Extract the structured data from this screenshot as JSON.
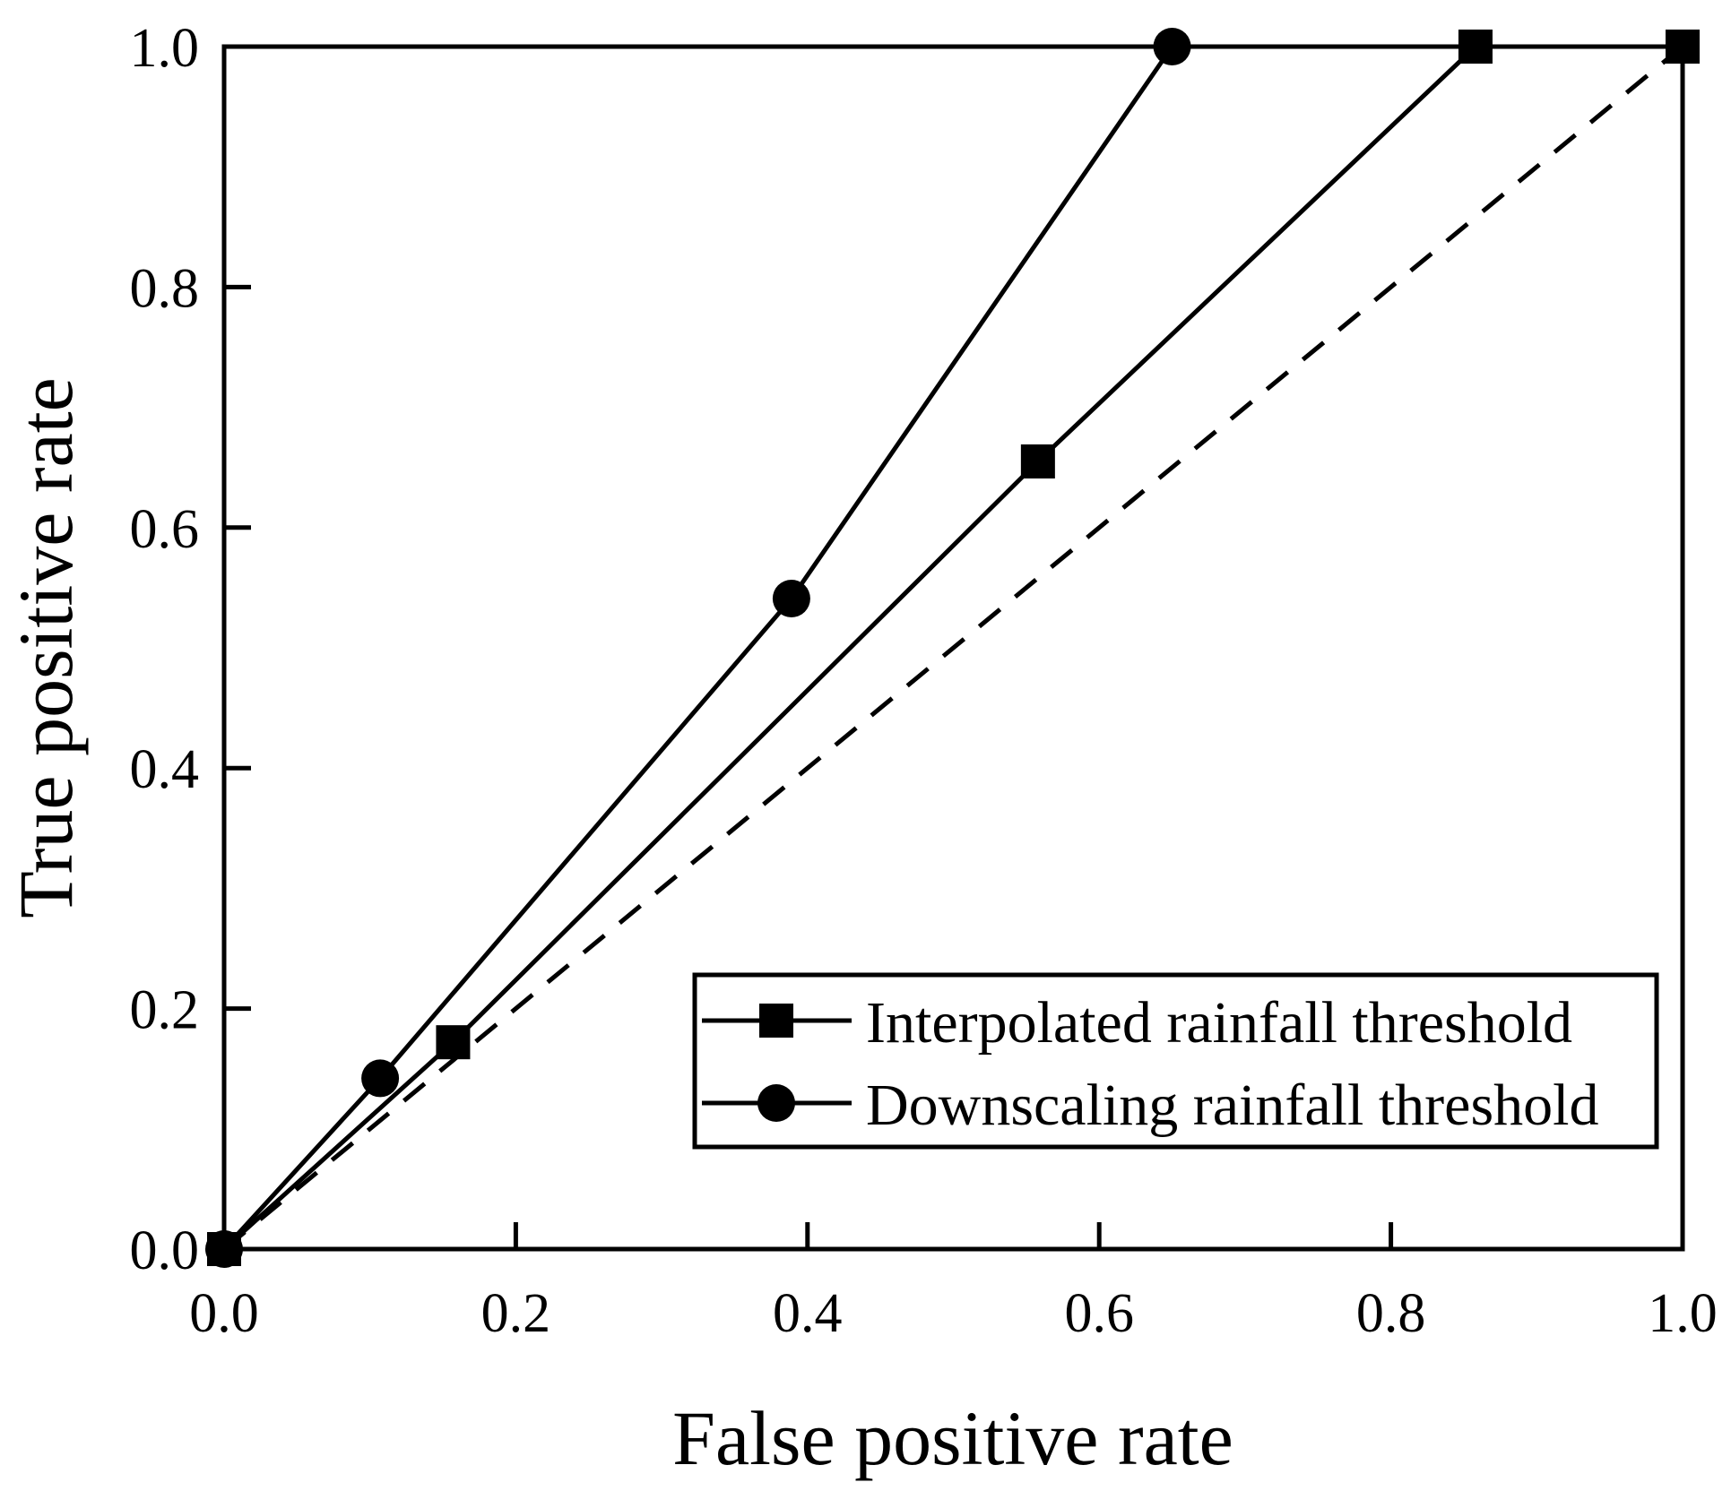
{
  "chart_data": {
    "type": "line",
    "xlabel": "False positive rate",
    "ylabel": "True positive rate",
    "xlim": [
      0,
      1
    ],
    "ylim": [
      0,
      1
    ],
    "x_ticks": [
      "0.0",
      "0.2",
      "0.4",
      "0.6",
      "0.8",
      "1.0"
    ],
    "y_ticks": [
      "0.0",
      "0.2",
      "0.4",
      "0.6",
      "0.8",
      "1.0"
    ],
    "grid": false,
    "legend_position": "bottom-right",
    "series": [
      {
        "name": "Interpolated rainfall threshold",
        "marker": "square",
        "line_style": "solid",
        "color": "#000000",
        "points": [
          {
            "x": 0.0,
            "y": 0.0
          },
          {
            "x": 0.157,
            "y": 0.172
          },
          {
            "x": 0.558,
            "y": 0.655
          },
          {
            "x": 0.858,
            "y": 1.0
          },
          {
            "x": 1.0,
            "y": 1.0
          }
        ]
      },
      {
        "name": "Downscaling rainfall threshold",
        "marker": "circle",
        "line_style": "solid",
        "color": "#000000",
        "points": [
          {
            "x": 0.0,
            "y": 0.0
          },
          {
            "x": 0.107,
            "y": 0.142
          },
          {
            "x": 0.389,
            "y": 0.541
          },
          {
            "x": 0.65,
            "y": 1.0
          }
        ]
      }
    ],
    "reference_line": {
      "line_style": "dashed",
      "color": "#000000",
      "points": [
        {
          "x": 0.0,
          "y": 0.0
        },
        {
          "x": 1.0,
          "y": 1.0
        }
      ]
    }
  }
}
